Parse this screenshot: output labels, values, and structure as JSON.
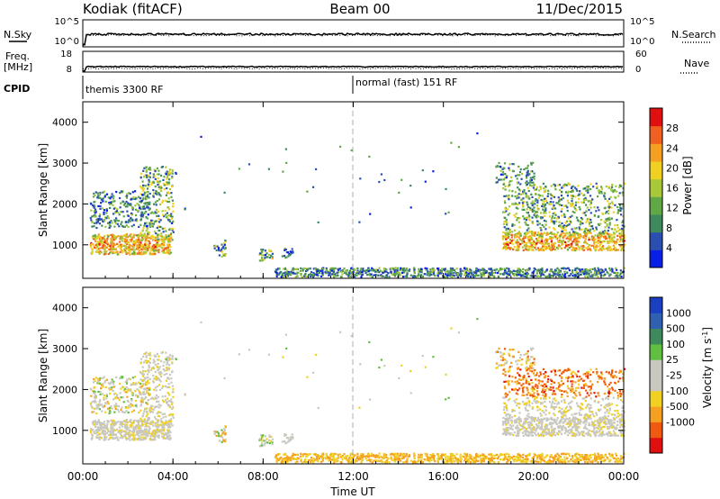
{
  "header": {
    "station": "Kodiak (fitACF)",
    "beam": "Beam 00",
    "date": "11/Dec/2015"
  },
  "strip_labels": {
    "nsky": "N.Sky",
    "nsearch": "N.Search",
    "freq_line1": "Freq.",
    "freq_line2": "[MHz]",
    "nave": "Nave",
    "cpid": "CPID"
  },
  "noise_panel": {
    "left_ticks": [
      "10^5",
      "10^0"
    ],
    "right_ticks": [
      "10^5",
      "10^0"
    ]
  },
  "freq_panel": {
    "left_ticks": [
      "18",
      "8"
    ],
    "right_ticks": [
      "60",
      "0"
    ]
  },
  "cpid_panel": {
    "segments": [
      "themis 3300 RF",
      "normal (fast) 151 RF"
    ]
  },
  "colors": {
    "power_scale": [
      "#0a1fe6",
      "#2a4fb0",
      "#3f8a5c",
      "#5fa845",
      "#a8c83a",
      "#f0d020",
      "#f5a020",
      "#f06020",
      "#e01010"
    ],
    "velocity_scale": [
      "#e01010",
      "#f05a10",
      "#f5a020",
      "#f0d020",
      "#c8c8c0",
      "#c8c8c0",
      "#5fbf40",
      "#3f8a5c",
      "#3060b0",
      "#1a3fc0"
    ]
  },
  "chart_data": [
    {
      "type": "heatmap",
      "title": "Power",
      "xlabel": "Time UT",
      "ylabel": "Slant Range [km]",
      "x_ticks": [
        "00:00",
        "04:00",
        "08:00",
        "12:00",
        "16:00",
        "20:00",
        "00:00"
      ],
      "y_ticks": [
        1000,
        2000,
        3000,
        4000
      ],
      "xlim_hours": [
        0,
        24
      ],
      "ylim_km": [
        180,
        4500
      ],
      "colorbar": {
        "label": "Power [dB]",
        "ticks": [
          4,
          8,
          12,
          16,
          20,
          24,
          28
        ],
        "range": [
          0,
          32
        ]
      },
      "echo_regions": [
        {
          "t": [
            0.3,
            4.0
          ],
          "r": [
            700,
            2800
          ],
          "value": "strong 16-30 dB near 1000 km"
        },
        {
          "t": [
            5.8,
            9.2
          ],
          "r": [
            600,
            1100
          ],
          "value": "patchy 4-20 dB"
        },
        {
          "t": [
            9.0,
            24.0
          ],
          "r": [
            200,
            450
          ],
          "value": "near-range 4-16 dB"
        },
        {
          "t": [
            18.5,
            24.0
          ],
          "r": [
            800,
            3000
          ],
          "value": "strong 16-30 dB near 1000 km"
        }
      ]
    },
    {
      "type": "heatmap",
      "title": "Velocity",
      "xlabel": "Time UT",
      "ylabel": "Slant Range [km]",
      "x_ticks": [
        "00:00",
        "04:00",
        "08:00",
        "12:00",
        "16:00",
        "20:00",
        "00:00"
      ],
      "y_ticks": [
        1000,
        2000,
        3000,
        4000
      ],
      "xlim_hours": [
        0,
        24
      ],
      "ylim_km": [
        180,
        4500
      ],
      "colorbar": {
        "label": "Velocity [m s-1]",
        "ticks": [
          1000,
          500,
          100,
          25,
          -25,
          -100,
          -500,
          -1000
        ]
      },
      "echo_regions": [
        {
          "t": [
            0.3,
            4.0
          ],
          "r": [
            700,
            2800
          ],
          "value": "ground scatter (grey) with mixed ±100 m/s"
        },
        {
          "t": [
            9.0,
            24.0
          ],
          "r": [
            200,
            450
          ],
          "value": "-25 to -100 m/s"
        },
        {
          "t": [
            18.5,
            24.0
          ],
          "r": [
            800,
            3000
          ],
          "value": "ground scatter near 1000 km, -100 to -500 m/s near 2000 km"
        }
      ]
    }
  ],
  "vertical_marker_time": "12:00"
}
